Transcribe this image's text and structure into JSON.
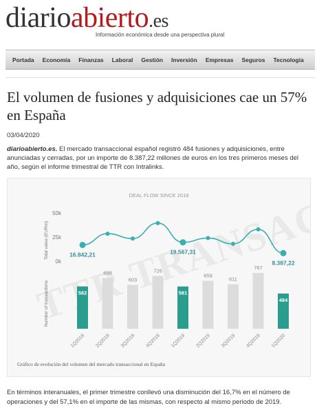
{
  "site": {
    "logo_part1": "diario",
    "logo_part2": "abierto",
    "logo_part3": ".es",
    "tagline": "Información económica desde una perspectiva plural"
  },
  "nav": [
    "Portada",
    "Economía",
    "Finanzas",
    "Laboral",
    "Gestión",
    "Inversión",
    "Empresas",
    "Seguros",
    "Tecnologia"
  ],
  "article": {
    "title": "El volumen de fusiones y adquisiciones cae un 57% en España",
    "date": "03/04/2020",
    "lead_source": "diarioabierto.es.",
    "lead_text": " El mercado transaccional español registró 484 fusiones y adquisiciones, entre anunciadas y cerradas, por un importe de 8.387,22 millones de euros en los tres primeros meses del año, según el informe trimestral de TTR con Intralinks.",
    "caption": "Gráfico de evolución del volumen del mercado transaccional en España",
    "body": "En términos interanuales, el primer trimestre conllevó una disminución del 16,7% en el número de operaciones y del 57,1% en el importe de las mismas, con respecto al mismo periodo de 2019."
  },
  "chart_data": {
    "type": "bar",
    "title": "DEAL FLOW SINCE 2018",
    "watermark": "TTR TRANSACTIONAL TRACK RECORD",
    "categories": [
      "1Q2018",
      "2Q2018",
      "3Q2018",
      "4Q2018",
      "1Q2019",
      "2Q2019",
      "3Q2019",
      "4Q2019",
      "1Q2020"
    ],
    "series": [
      {
        "name": "Number of transactions",
        "values": [
          582,
          698,
          603,
          726,
          581,
          659,
          611,
          767,
          484
        ]
      },
      {
        "name": "Total value (EURm)",
        "values": [
          16842.21,
          28500,
          23500,
          39500,
          19567.31,
          24000,
          18000,
          33000,
          8387.22
        ]
      }
    ],
    "value_labels": [
      "16.842,21",
      "19.567,31",
      "8.387,22"
    ],
    "value_label_indices": [
      0,
      4,
      8
    ],
    "highlight_indices": [
      0,
      4,
      8
    ],
    "value_ticks": [
      "50k",
      "25k",
      "0k"
    ],
    "ylabel_top": "Total value (EURm)",
    "ylabel_bottom": "Number of transactions",
    "value_ylim": [
      0,
      50000
    ],
    "count_ylim": [
      0,
      900
    ],
    "colors": {
      "teal": "#2a9d8f",
      "gray": "#dcdcdc",
      "line": "#3aaeb0",
      "axis": "#777"
    }
  }
}
